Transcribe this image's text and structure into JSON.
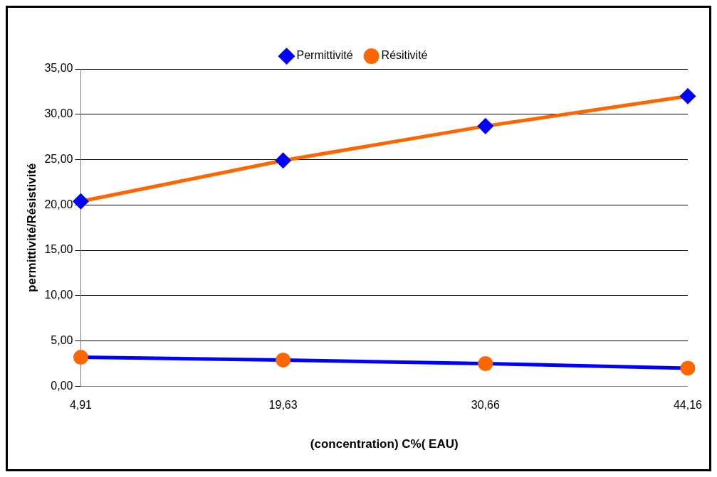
{
  "chart_data": {
    "type": "line",
    "xlabel": "(concentration) C%( EAU)",
    "ylabel": "permittivité/Résistivité",
    "categories": [
      "4,91",
      "19,63",
      "30,66",
      "44,16"
    ],
    "series": [
      {
        "name": "Permittivité",
        "color": "#ff6600",
        "colors": [
          "#0000ff",
          "#0000ff",
          "#0000ff",
          "#0000ff"
        ],
        "marker": "diamond",
        "values": [
          20.4,
          24.9,
          28.7,
          32.0
        ]
      },
      {
        "name": "Résitivité",
        "color": "#0000ff",
        "colors": [
          "#ff6600",
          "#ff6600",
          "#ff6600",
          "#ff6600"
        ],
        "marker": "circle",
        "values": [
          3.2,
          2.9,
          2.5,
          2.0
        ]
      }
    ],
    "ylim": [
      0,
      35
    ],
    "yticks": [
      {
        "value": 0,
        "label": "0,00"
      },
      {
        "value": 5,
        "label": "5,00"
      },
      {
        "value": 10,
        "label": "10,00"
      },
      {
        "value": 15,
        "label": "15,00"
      },
      {
        "value": 20,
        "label": "20,00"
      },
      {
        "value": 25,
        "label": "25,00"
      },
      {
        "value": 30,
        "label": "30,00"
      },
      {
        "value": 35,
        "label": "35,00"
      }
    ],
    "grid": "y",
    "legend": "top"
  }
}
